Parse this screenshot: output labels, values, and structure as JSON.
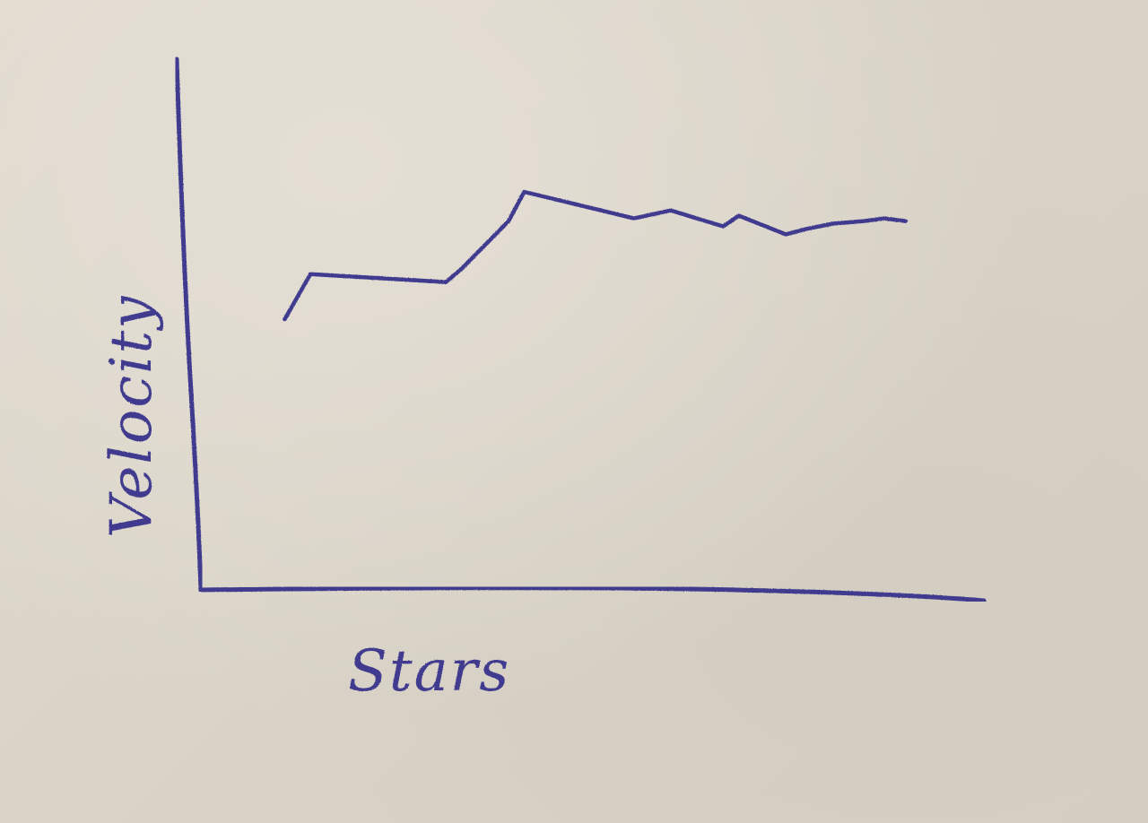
{
  "chart_data": {
    "type": "line",
    "title": "",
    "xlabel": "Stars",
    "ylabel": "Velocity",
    "xlim": [
      0,
      100
    ],
    "ylim": [
      0,
      100
    ],
    "grid": false,
    "legend": "none",
    "x": [
      10.7,
      14.0,
      31.3,
      33.3,
      39.3,
      41.3,
      55.3,
      60.0,
      66.7,
      68.7,
      74.7,
      77.3,
      80.7,
      84.7,
      87.3,
      90.0
    ],
    "series": [
      {
        "values": [
          51.0,
          59.5,
          58.0,
          60.5,
          69.5,
          75.0,
          70.0,
          71.5,
          68.5,
          70.5,
          67.0,
          68.0,
          69.0,
          69.5,
          70.0,
          69.5
        ]
      }
    ]
  },
  "colors": {
    "ink": "#3f3a8e",
    "paper": "#dcd6cb"
  }
}
